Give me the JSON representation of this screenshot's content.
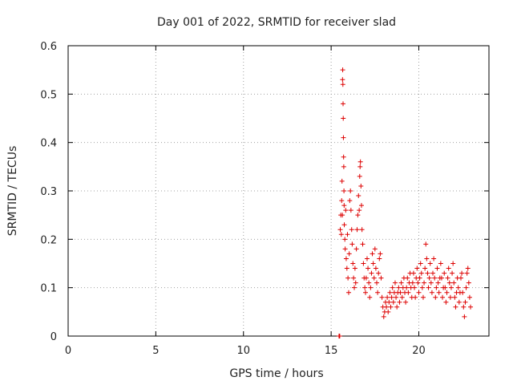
{
  "chart_data": {
    "type": "scatter",
    "title": "Day 001 of 2022, SRMTID for receiver slad",
    "xlabel": "GPS time / hours",
    "ylabel": "SRMTID / TECUs",
    "xlim": [
      0,
      24
    ],
    "ylim": [
      0,
      0.6
    ],
    "grid": true,
    "x_ticks": [
      0,
      5,
      10,
      15,
      20
    ],
    "y_ticks": [
      0,
      0.1,
      0.2,
      0.3,
      0.4,
      0.5,
      0.6
    ],
    "x_tick_labels": [
      "0",
      "5",
      "10",
      "15",
      "20"
    ],
    "y_tick_labels": [
      "0",
      "0.1",
      "0.2",
      "0.3",
      "0.4",
      "0.5",
      "0.6"
    ],
    "marker": "+",
    "marker_color": "#dd0000",
    "series": [
      {
        "name": "SRMTID",
        "points": [
          [
            15.45,
            0.0
          ],
          [
            15.47,
            0.0
          ],
          [
            15.49,
            0.0
          ],
          [
            15.52,
            0.22
          ],
          [
            15.55,
            0.25
          ],
          [
            15.58,
            0.21
          ],
          [
            15.6,
            0.28
          ],
          [
            15.62,
            0.32
          ],
          [
            15.64,
            0.25
          ],
          [
            15.65,
            0.53
          ],
          [
            15.66,
            0.55
          ],
          [
            15.67,
            0.52
          ],
          [
            15.68,
            0.48
          ],
          [
            15.69,
            0.45
          ],
          [
            15.7,
            0.41
          ],
          [
            15.71,
            0.37
          ],
          [
            15.72,
            0.35
          ],
          [
            15.73,
            0.3
          ],
          [
            15.74,
            0.27
          ],
          [
            15.75,
            0.23
          ],
          [
            15.78,
            0.2
          ],
          [
            15.8,
            0.18
          ],
          [
            15.83,
            0.26
          ],
          [
            15.86,
            0.16
          ],
          [
            15.9,
            0.14
          ],
          [
            15.93,
            0.21
          ],
          [
            15.96,
            0.12
          ],
          [
            16.0,
            0.09
          ],
          [
            16.03,
            0.17
          ],
          [
            16.06,
            0.28
          ],
          [
            16.1,
            0.3
          ],
          [
            16.13,
            0.26
          ],
          [
            16.17,
            0.22
          ],
          [
            16.2,
            0.19
          ],
          [
            16.24,
            0.15
          ],
          [
            16.28,
            0.12
          ],
          [
            16.32,
            0.1
          ],
          [
            16.36,
            0.14
          ],
          [
            16.4,
            0.11
          ],
          [
            16.44,
            0.18
          ],
          [
            16.48,
            0.22
          ],
          [
            16.52,
            0.25
          ],
          [
            16.56,
            0.29
          ],
          [
            16.6,
            0.26
          ],
          [
            16.63,
            0.33
          ],
          [
            16.65,
            0.35
          ],
          [
            16.67,
            0.36
          ],
          [
            16.7,
            0.31
          ],
          [
            16.73,
            0.27
          ],
          [
            16.76,
            0.22
          ],
          [
            16.8,
            0.19
          ],
          [
            16.84,
            0.15
          ],
          [
            16.88,
            0.12
          ],
          [
            16.92,
            0.1
          ],
          [
            16.96,
            0.09
          ],
          [
            17.0,
            0.12
          ],
          [
            17.05,
            0.16
          ],
          [
            17.1,
            0.14
          ],
          [
            17.15,
            0.11
          ],
          [
            17.2,
            0.08
          ],
          [
            17.25,
            0.1
          ],
          [
            17.3,
            0.13
          ],
          [
            17.35,
            0.17
          ],
          [
            17.4,
            0.15
          ],
          [
            17.45,
            0.12
          ],
          [
            17.5,
            0.18
          ],
          [
            17.55,
            0.14
          ],
          [
            17.6,
            0.11
          ],
          [
            17.65,
            0.09
          ],
          [
            17.7,
            0.13
          ],
          [
            17.75,
            0.16
          ],
          [
            17.8,
            0.17
          ],
          [
            17.85,
            0.12
          ],
          [
            17.9,
            0.08
          ],
          [
            17.95,
            0.06
          ],
          [
            18.0,
            0.04
          ],
          [
            18.05,
            0.05
          ],
          [
            18.1,
            0.07
          ],
          [
            18.15,
            0.06
          ],
          [
            18.2,
            0.08
          ],
          [
            18.25,
            0.05
          ],
          [
            18.3,
            0.07
          ],
          [
            18.35,
            0.09
          ],
          [
            18.4,
            0.06
          ],
          [
            18.45,
            0.08
          ],
          [
            18.5,
            0.1
          ],
          [
            18.55,
            0.07
          ],
          [
            18.6,
            0.09
          ],
          [
            18.65,
            0.11
          ],
          [
            18.7,
            0.08
          ],
          [
            18.75,
            0.06
          ],
          [
            18.8,
            0.09
          ],
          [
            18.85,
            0.1
          ],
          [
            18.9,
            0.07
          ],
          [
            18.95,
            0.09
          ],
          [
            19.0,
            0.11
          ],
          [
            19.05,
            0.08
          ],
          [
            19.1,
            0.1
          ],
          [
            19.15,
            0.12
          ],
          [
            19.2,
            0.09
          ],
          [
            19.25,
            0.07
          ],
          [
            19.3,
            0.1
          ],
          [
            19.35,
            0.12
          ],
          [
            19.4,
            0.09
          ],
          [
            19.45,
            0.11
          ],
          [
            19.5,
            0.13
          ],
          [
            19.55,
            0.1
          ],
          [
            19.6,
            0.08
          ],
          [
            19.65,
            0.11
          ],
          [
            19.7,
            0.13
          ],
          [
            19.75,
            0.1
          ],
          [
            19.8,
            0.08
          ],
          [
            19.85,
            0.12
          ],
          [
            19.9,
            0.14
          ],
          [
            19.95,
            0.11
          ],
          [
            20.0,
            0.09
          ],
          [
            20.05,
            0.12
          ],
          [
            20.1,
            0.15
          ],
          [
            20.15,
            0.13
          ],
          [
            20.2,
            0.1
          ],
          [
            20.25,
            0.08
          ],
          [
            20.3,
            0.11
          ],
          [
            20.35,
            0.14
          ],
          [
            20.4,
            0.19
          ],
          [
            20.45,
            0.16
          ],
          [
            20.5,
            0.13
          ],
          [
            20.55,
            0.1
          ],
          [
            20.6,
            0.12
          ],
          [
            20.65,
            0.15
          ],
          [
            20.7,
            0.11
          ],
          [
            20.75,
            0.09
          ],
          [
            20.8,
            0.13
          ],
          [
            20.85,
            0.16
          ],
          [
            20.9,
            0.12
          ],
          [
            20.95,
            0.08
          ],
          [
            21.0,
            0.1
          ],
          [
            21.05,
            0.14
          ],
          [
            21.1,
            0.11
          ],
          [
            21.15,
            0.09
          ],
          [
            21.2,
            0.12
          ],
          [
            21.25,
            0.15
          ],
          [
            21.3,
            0.12
          ],
          [
            21.35,
            0.08
          ],
          [
            21.4,
            0.1
          ],
          [
            21.45,
            0.13
          ],
          [
            21.5,
            0.1
          ],
          [
            21.55,
            0.07
          ],
          [
            21.6,
            0.09
          ],
          [
            21.65,
            0.12
          ],
          [
            21.7,
            0.14
          ],
          [
            21.75,
            0.11
          ],
          [
            21.8,
            0.08
          ],
          [
            21.85,
            0.1
          ],
          [
            21.9,
            0.13
          ],
          [
            21.95,
            0.15
          ],
          [
            22.0,
            0.11
          ],
          [
            22.05,
            0.08
          ],
          [
            22.1,
            0.06
          ],
          [
            22.15,
            0.09
          ],
          [
            22.2,
            0.12
          ],
          [
            22.25,
            0.1
          ],
          [
            22.3,
            0.07
          ],
          [
            22.35,
            0.09
          ],
          [
            22.4,
            0.12
          ],
          [
            22.45,
            0.13
          ],
          [
            22.5,
            0.09
          ],
          [
            22.55,
            0.06
          ],
          [
            22.6,
            0.04
          ],
          [
            22.65,
            0.07
          ],
          [
            22.7,
            0.1
          ],
          [
            22.75,
            0.13
          ],
          [
            22.8,
            0.14
          ],
          [
            22.85,
            0.11
          ],
          [
            22.9,
            0.08
          ],
          [
            22.95,
            0.06
          ]
        ]
      }
    ]
  }
}
